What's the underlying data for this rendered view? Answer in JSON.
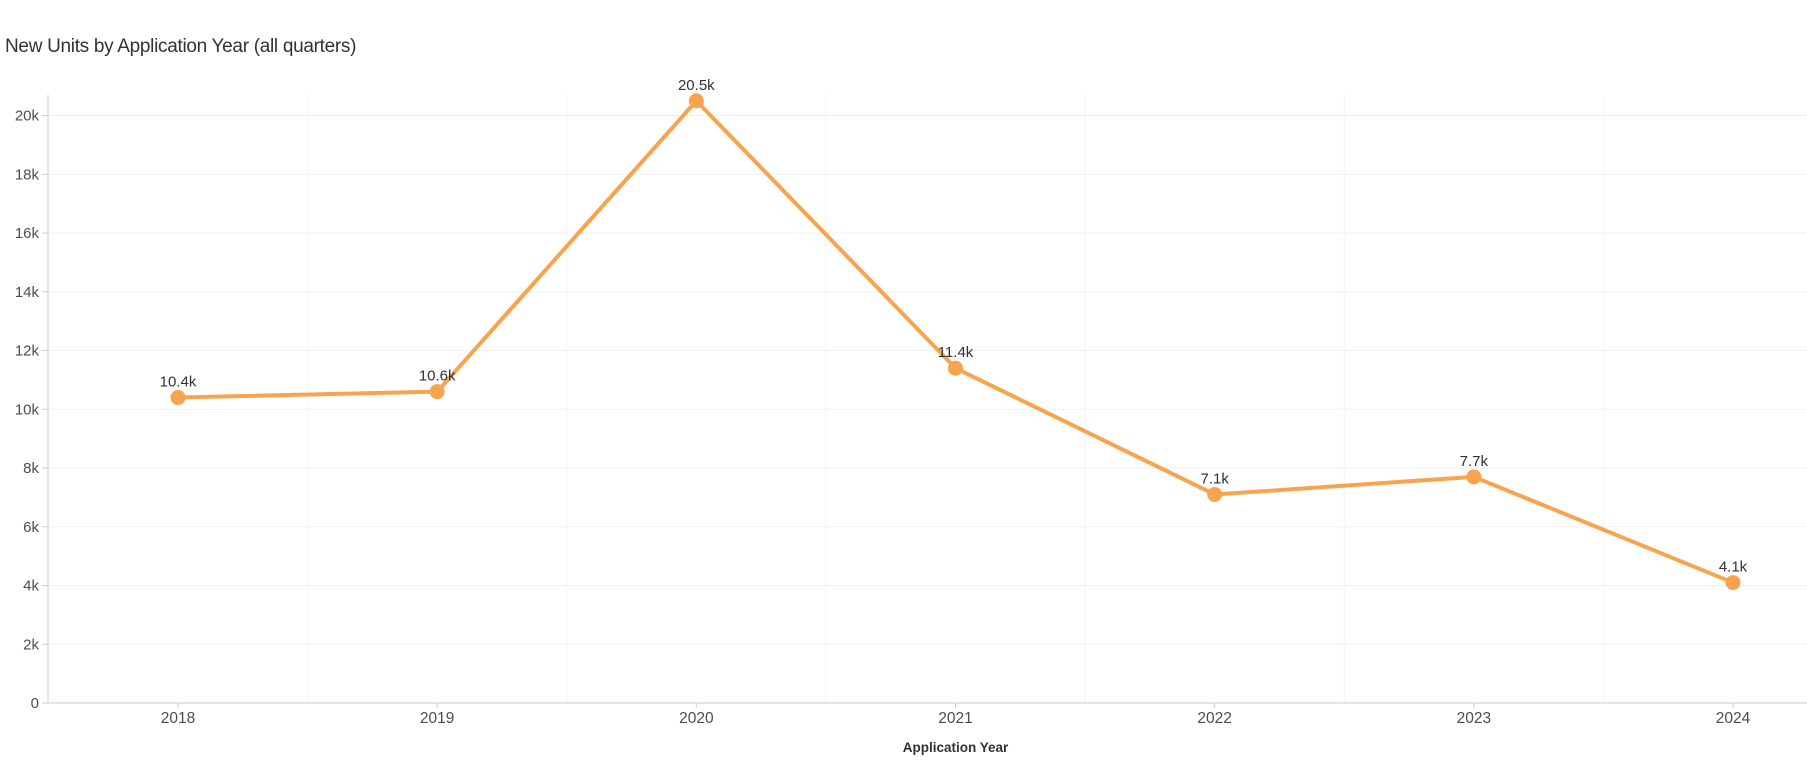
{
  "chart": {
    "title": "New Units by Application Year (all quarters)"
  },
  "chart_data": {
    "type": "line",
    "title": "New Units by Application Year (all quarters)",
    "xlabel": "Application Year",
    "ylabel": "",
    "categories": [
      "2018",
      "2019",
      "2020",
      "2021",
      "2022",
      "2023",
      "2024"
    ],
    "series": [
      {
        "name": "New Units",
        "values": [
          10400,
          10600,
          20500,
          11400,
          7100,
          7700,
          4100
        ],
        "point_labels": [
          "10.4k",
          "10.6k",
          "20.5k",
          "11.4k",
          "7.1k",
          "7.7k",
          "4.1k"
        ],
        "color": "#F8A44E",
        "marker": "circle",
        "data_labels": true
      }
    ],
    "ylim": [
      0,
      20700
    ],
    "yticks": [
      0,
      2000,
      4000,
      6000,
      8000,
      10000,
      12000,
      14000,
      16000,
      18000,
      20000
    ],
    "ytick_labels": [
      "0",
      "2k",
      "4k",
      "6k",
      "8k",
      "10k",
      "12k",
      "14k",
      "16k",
      "18k",
      "20k"
    ],
    "grid": true,
    "legend": "none"
  },
  "colors": {
    "accent": "#F8A44E",
    "text": "#323232",
    "tick_text": "#4D4D4D",
    "axis_line": "#CCCCCC",
    "h_gridline": "#EFEFEF",
    "v_gridline": "#F4F4F4",
    "background": "#FFFFFF"
  }
}
